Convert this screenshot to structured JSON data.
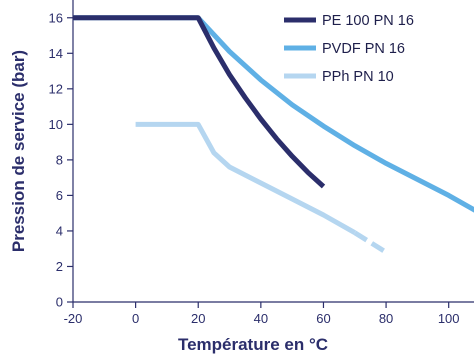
{
  "chart_data": {
    "type": "line",
    "title": "",
    "xlabel": "Température en °C",
    "ylabel": "Pression de service (bar)",
    "xlim": [
      -20,
      110
    ],
    "ylim": [
      0,
      17
    ],
    "x_ticks": [
      -20,
      0,
      20,
      40,
      60,
      80,
      100
    ],
    "x_tick_labels": [
      "-20",
      "0",
      "20",
      "40",
      "60",
      "80",
      "100"
    ],
    "y_ticks": [
      0,
      2,
      4,
      6,
      8,
      10,
      12,
      14,
      16
    ],
    "y_tick_labels": [
      "0",
      "2",
      "4",
      "6",
      "8",
      "10",
      "12",
      "14",
      "16"
    ],
    "grid": false,
    "legend_position": "top-right",
    "series": [
      {
        "name": "PE 100 PN 16",
        "color": "#2b2e6b",
        "x": [
          -20,
          20,
          25,
          30,
          35,
          40,
          45,
          50,
          55,
          60
        ],
        "y": [
          16,
          16,
          14.3,
          12.8,
          11.5,
          10.3,
          9.2,
          8.2,
          7.3,
          6.5
        ]
      },
      {
        "name": "PVDF PN 16",
        "color": "#5fb0e5",
        "x": [
          -20,
          20,
          30,
          40,
          50,
          60,
          70,
          80,
          90,
          100,
          110
        ],
        "y": [
          16,
          16,
          14.1,
          12.5,
          11.1,
          9.9,
          8.8,
          7.8,
          6.9,
          6.0,
          5.0
        ]
      },
      {
        "name": "PPh PN 10",
        "color": "#b5d6f0",
        "x": [
          0,
          20,
          25,
          30,
          40,
          50,
          60,
          70
        ],
        "y": [
          10,
          10,
          8.4,
          7.6,
          6.7,
          5.8,
          4.9,
          3.9
        ],
        "dashed_extension": {
          "x": [
            70,
            80
          ],
          "y": [
            3.9,
            2.8
          ]
        }
      }
    ]
  }
}
